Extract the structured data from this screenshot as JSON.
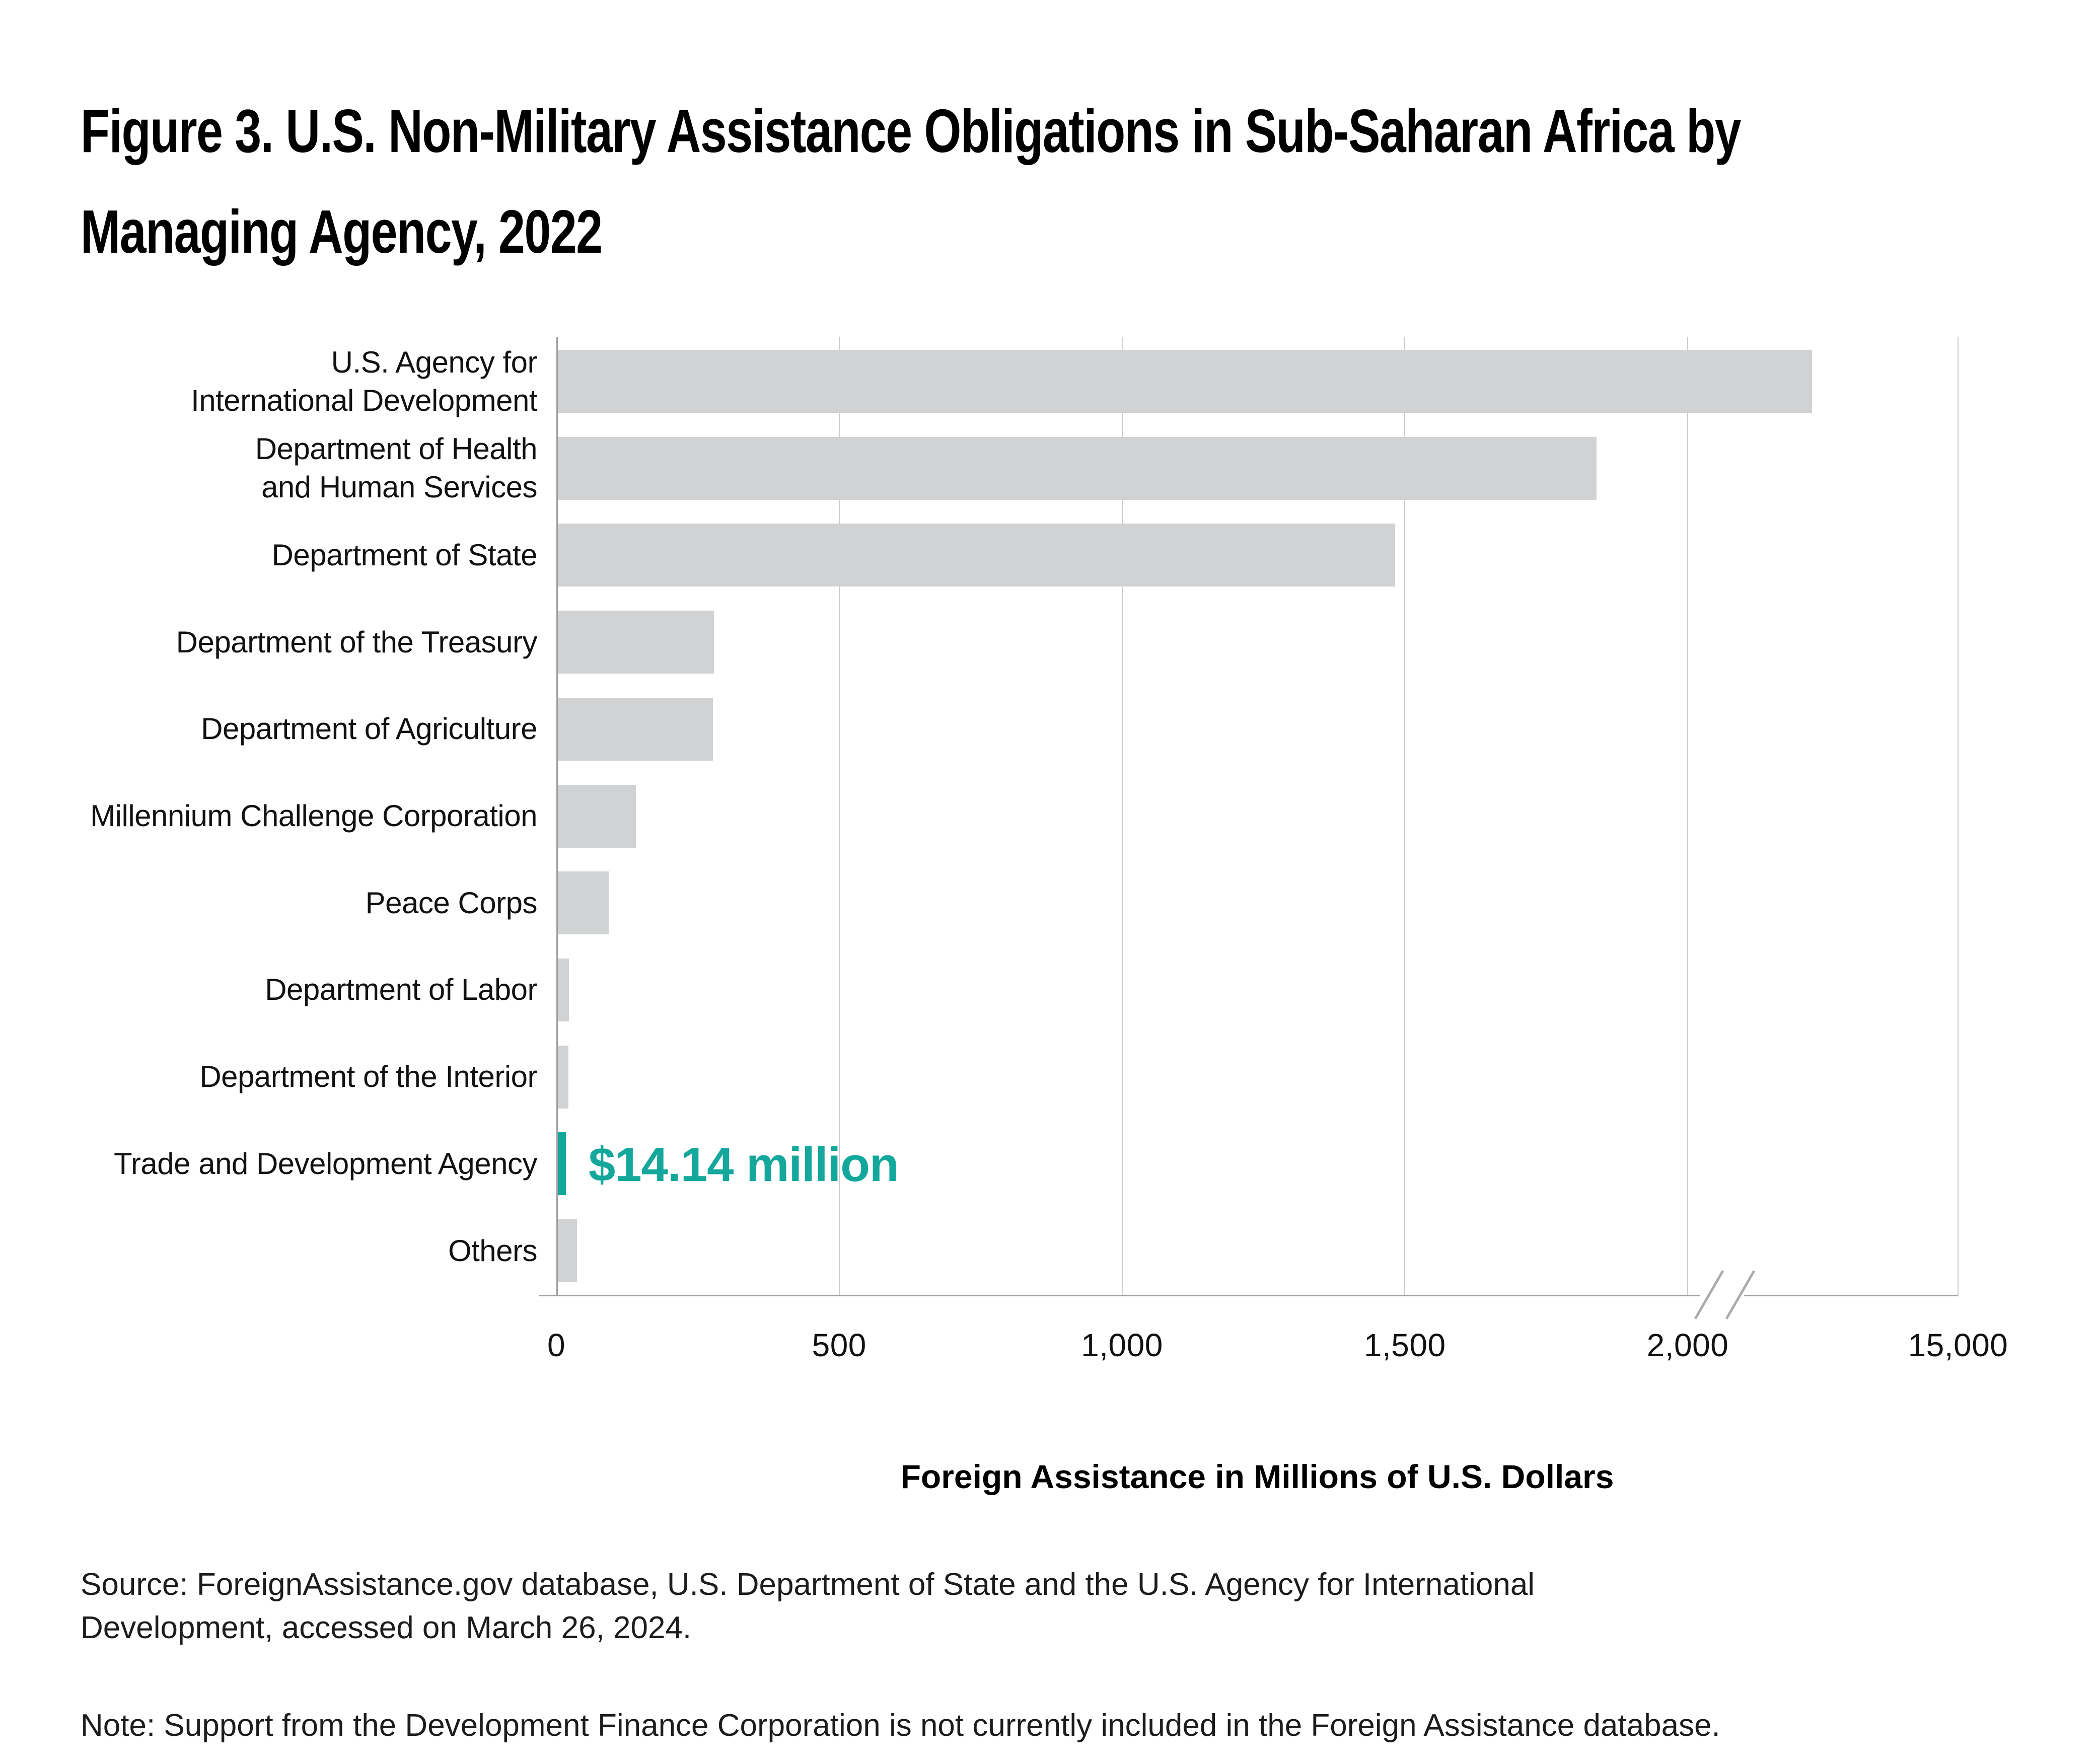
{
  "title": "Figure 3. U.S. Non-Military Assistance Obligations in Sub-Saharan Africa by\nManaging Agency, 2022",
  "chart_data": {
    "type": "bar",
    "orientation": "horizontal",
    "title": "Figure 3. U.S. Non-Military Assistance Obligations in Sub-Saharan Africa by Managing Agency, 2022",
    "xlabel": "Foreign Assistance in Millions of U.S. Dollars",
    "ylabel": "",
    "grid": true,
    "axis_break": {
      "linear_max": 2000,
      "resume_value": 15000
    },
    "x_ticks": [
      {
        "value": 0,
        "label": "0"
      },
      {
        "value": 500,
        "label": "500"
      },
      {
        "value": 1000,
        "label": "1,000"
      },
      {
        "value": 1500,
        "label": "1,500"
      },
      {
        "value": 2000,
        "label": "2,000"
      },
      {
        "value": 15000,
        "label": "15,000"
      }
    ],
    "categories": [
      "U.S. Agency for\nInternational Development",
      "Department of Health\nand Human Services",
      "Department of State",
      "Department of the Treasury",
      "Department of Agriculture",
      "Millennium Challenge Corporation",
      "Peace Corps",
      "Department of Labor",
      "Department of the Interior",
      "Trade and Development Agency",
      "Others"
    ],
    "values": [
      7900,
      1836,
      1480,
      276,
      274,
      138,
      90,
      20,
      19,
      14.14,
      34
    ],
    "bar_color": "#D1D2D4",
    "highlight": {
      "category": "Trade and Development Agency",
      "index": 9,
      "label": "$14.14 million",
      "color": "#14A79B"
    }
  },
  "source": "Source: ForeignAssistance.gov database, U.S. Department of State and the U.S. Agency for International Development, accessed on March 26, 2024.",
  "note": "Note: Support from the Development Finance Corporation is not currently included in the Foreign Assistance database."
}
